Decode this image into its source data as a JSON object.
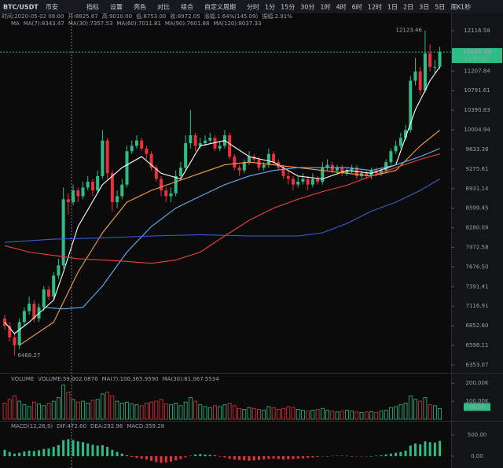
{
  "chart_data": {
    "type": "candlestick",
    "symbol": "BTC/USDT",
    "exchange": "币安",
    "toolbar": [
      "指标",
      "设置",
      "亮色",
      "对比",
      "组合",
      "自定义周期",
      "分时",
      "1分",
      "15分",
      "30分",
      "1时",
      "4时",
      "6时",
      "12时",
      "1日",
      "2日",
      "3日",
      "5日",
      "周K",
      "1秒"
    ],
    "active_period": "1日",
    "info": [
      "时间:2020-05-02 08:00",
      "开:8825.67",
      "高:9010.00",
      "低:8753.00",
      "收:8972.05",
      "涨幅:1.64%(145.09)",
      "振幅:2.91%"
    ],
    "up_color": "#2ebd85",
    "down_color": "#e8313a",
    "price": {
      "legend_title": "MA",
      "log_scale": true,
      "ylim": [
        6276,
        12321
      ],
      "yticks": [
        12116.58,
        11207.84,
        10791.61,
        10390.83,
        10004.94,
        9633.38,
        9275.61,
        8931.14,
        8599.45,
        8280.09,
        7972.58,
        {
          "value": 7676.5,
          "label": "7676.50"
        },
        7391.41,
        7116.91,
        {
          "value": 6852.6,
          "label": "6852.60"
        },
        6598.11,
        6353.07
      ],
      "countdown": "01:57:23",
      "open": [
        6950,
        6850,
        6700,
        6600,
        6900,
        7050,
        7150,
        6950,
        7100,
        7350,
        7250,
        7550,
        7700,
        8750,
        8700,
        8900,
        8800,
        8950,
        9050,
        8900,
        9150,
        9800,
        9200,
        8700,
        8800,
        9000,
        9600,
        9700,
        9800,
        9650,
        9550,
        9300,
        9100,
        8900,
        8800,
        8850,
        9150,
        9300,
        9750,
        9900,
        9700,
        9750,
        9800,
        9850,
        9650,
        9700,
        9900,
        9500,
        9300,
        9250,
        9400,
        9500,
        9450,
        9300,
        9350,
        9550,
        9400,
        9300,
        9150,
        9100,
        9000,
        9050,
        9100,
        9000,
        9100,
        9050,
        9300,
        9350,
        9250,
        9300,
        9200,
        9250,
        9300,
        9150,
        9200,
        9150,
        9250,
        9200,
        9250,
        9400,
        9600,
        9700,
        9850,
        10000,
        11000,
        11200,
        10800,
        11600,
        11300,
        11300
      ],
      "high": [
        7000,
        6900,
        6750,
        6950,
        7100,
        7250,
        7200,
        7150,
        7400,
        7400,
        7600,
        7800,
        8950,
        8850,
        9000,
        8950,
        9050,
        9150,
        9100,
        9250,
        10000,
        9850,
        9250,
        8900,
        9100,
        9700,
        9800,
        9900,
        9850,
        9700,
        9600,
        9350,
        9150,
        8950,
        8950,
        9250,
        9400,
        9900,
        10400,
        9950,
        9850,
        9900,
        9950,
        9900,
        9800,
        10000,
        9950,
        9550,
        9350,
        9450,
        9600,
        9550,
        9500,
        9400,
        9650,
        9600,
        9450,
        9350,
        9250,
        9150,
        9150,
        9200,
        9150,
        9200,
        9150,
        9400,
        9450,
        9400,
        9350,
        9350,
        9300,
        9350,
        9350,
        9250,
        9250,
        9300,
        9300,
        9300,
        9450,
        9650,
        9800,
        9950,
        10100,
        11100,
        11500,
        11300,
        12123.46,
        11800,
        11450,
        11750
      ],
      "low": [
        6800,
        6650,
        6468.27,
        6550,
        6850,
        7000,
        6900,
        6900,
        7050,
        7200,
        7200,
        7500,
        7650,
        8500,
        8650,
        8700,
        8750,
        8900,
        8800,
        8850,
        9100,
        9100,
        8550,
        8600,
        8750,
        8950,
        9550,
        9650,
        9600,
        9450,
        9250,
        9050,
        8800,
        8700,
        8700,
        8800,
        9100,
        9250,
        9650,
        9600,
        9650,
        9700,
        9750,
        9600,
        9600,
        9650,
        9450,
        9250,
        9150,
        9200,
        9350,
        9400,
        9250,
        9250,
        9300,
        9350,
        9250,
        9100,
        9000,
        8900,
        8950,
        9000,
        8900,
        8950,
        9000,
        9000,
        9250,
        9200,
        9200,
        9150,
        9150,
        9200,
        9100,
        9100,
        9100,
        9100,
        9150,
        9150,
        9200,
        9350,
        9550,
        9650,
        9800,
        9950,
        10900,
        10700,
        10750,
        11200,
        11150,
        11250
      ],
      "close": [
        6850,
        6700,
        6600,
        6900,
        7050,
        7150,
        6950,
        7100,
        7350,
        7250,
        7550,
        7700,
        8750,
        8700,
        8900,
        8800,
        8950,
        9050,
        8900,
        9150,
        9800,
        9200,
        8700,
        8800,
        9000,
        9600,
        9700,
        9800,
        9650,
        9550,
        9300,
        9100,
        8900,
        8800,
        8850,
        9150,
        9300,
        9750,
        9900,
        9700,
        9750,
        9800,
        9850,
        9650,
        9700,
        9900,
        9500,
        9300,
        9250,
        9400,
        9500,
        9450,
        9300,
        9350,
        9550,
        9400,
        9300,
        9150,
        9100,
        9000,
        9050,
        9100,
        9000,
        9100,
        9050,
        9300,
        9350,
        9250,
        9300,
        9200,
        9250,
        9300,
        9150,
        9200,
        9150,
        9250,
        9200,
        9250,
        9400,
        9600,
        9700,
        9850,
        10000,
        11000,
        11200,
        10800,
        11600,
        11300,
        11300,
        11628.58
      ],
      "series": [
        {
          "name": "MA(7):8343.47",
          "color": "#ffffff",
          "x": [
            0,
            2,
            5,
            10,
            12,
            15,
            20,
            24,
            28,
            32,
            36,
            40,
            45,
            50,
            55,
            60,
            65,
            70,
            75,
            80,
            84,
            87,
            89
          ],
          "values": [
            6900,
            6750,
            6900,
            7200,
            7600,
            8300,
            9000,
            9300,
            9500,
            9200,
            9100,
            9700,
            9800,
            9500,
            9400,
            9150,
            9100,
            9250,
            9200,
            9350,
            10400,
            11000,
            11300
          ]
        },
        {
          "name": "MA(30):7357.53",
          "color": "#f5a04a",
          "x": [
            3,
            10,
            15,
            20,
            25,
            30,
            35,
            40,
            45,
            50,
            55,
            60,
            65,
            70,
            75,
            80,
            85,
            89
          ],
          "values": [
            6600,
            6900,
            7600,
            8200,
            8700,
            8900,
            9050,
            9200,
            9350,
            9400,
            9350,
            9300,
            9250,
            9200,
            9150,
            9250,
            9700,
            10000
          ]
        },
        {
          "name": "MA(60):7011.81",
          "color": "#5fb0f0",
          "x": [
            8,
            12,
            16,
            20,
            25,
            30,
            35,
            40,
            45,
            50,
            55,
            60,
            65,
            70,
            75,
            80,
            85,
            89
          ],
          "values": [
            7100,
            7080,
            7100,
            7400,
            7900,
            8300,
            8600,
            8800,
            9000,
            9150,
            9250,
            9300,
            9300,
            9300,
            9250,
            9350,
            9500,
            9650
          ]
        },
        {
          "name": "MA(90):7601.88",
          "color": "#e8443a",
          "x": [
            0,
            5,
            10,
            15,
            20,
            25,
            30,
            35,
            40,
            45,
            50,
            55,
            60,
            65,
            70,
            75,
            80,
            85,
            89
          ],
          "values": [
            8000,
            7900,
            7850,
            7800,
            7780,
            7760,
            7730,
            7780,
            7900,
            8150,
            8400,
            8600,
            8750,
            8880,
            8990,
            9150,
            9300,
            9450,
            9550
          ]
        },
        {
          "name": "MA(120):8037.33",
          "color": "#3a5fcf",
          "x": [
            0,
            10,
            20,
            30,
            40,
            50,
            60,
            65,
            70,
            75,
            80,
            85,
            89
          ],
          "values": [
            8050,
            8100,
            8120,
            8150,
            8170,
            8150,
            8150,
            8200,
            8350,
            8550,
            8700,
            8900,
            9100
          ]
        }
      ]
    },
    "volume": {
      "legend": [
        "VOLUME",
        "VOLUME:59,002.0876",
        "MA(7):100,365.9590",
        "MA(30):81,067.5534"
      ],
      "ylim": [
        0,
        240000
      ],
      "yticks": [
        {
          "value": 200000,
          "label": "200.00K"
        },
        {
          "value": 100000,
          "label": "100.00K"
        }
      ],
      "marker": {
        "value": 68200,
        "label": "68.2k"
      },
      "values": [
        90000,
        110000,
        130000,
        100000,
        80000,
        70000,
        95000,
        85000,
        75000,
        90000,
        100000,
        120000,
        190000,
        150000,
        110000,
        95000,
        100000,
        90000,
        105000,
        110000,
        140000,
        150000,
        130000,
        100000,
        90000,
        95000,
        85000,
        80000,
        75000,
        90000,
        95000,
        100000,
        110000,
        85000,
        80000,
        90000,
        75000,
        95000,
        120000,
        100000,
        80000,
        70000,
        65000,
        75000,
        70000,
        80000,
        90000,
        75000,
        60000,
        55000,
        65000,
        60000,
        55000,
        50000,
        70000,
        65000,
        55000,
        60000,
        70000,
        65000,
        55000,
        50000,
        45000,
        50000,
        55000,
        60000,
        50000,
        45000,
        40000,
        45000,
        50000,
        45000,
        40000,
        38000,
        40000,
        42000,
        38000,
        45000,
        50000,
        65000,
        70000,
        80000,
        90000,
        130000,
        110000,
        100000,
        120000,
        80000,
        75000,
        59002.0876
      ]
    },
    "macd": {
      "legend": [
        "MACD(12,26,9)",
        "DIF:472.60",
        "DEA:292.96",
        "MACD:359.28"
      ],
      "ylim": [
        -280,
        780
      ],
      "yticks": [
        {
          "value": 500,
          "label": "500.00"
        },
        {
          "value": 0,
          "label": "0.00"
        }
      ],
      "values": [
        150,
        100,
        60,
        80,
        110,
        130,
        120,
        140,
        170,
        180,
        220,
        260,
        380,
        400,
        380,
        350,
        330,
        300,
        270,
        250,
        260,
        220,
        150,
        100,
        60,
        20,
        -20,
        -40,
        -60,
        -80,
        -110,
        -140,
        -160,
        -150,
        -130,
        -100,
        -70,
        -30,
        10,
        40,
        50,
        40,
        30,
        20,
        -10,
        -30,
        -60,
        -80,
        -90,
        -100,
        -110,
        -100,
        -90,
        -80,
        -70,
        -60,
        -70,
        -80,
        -75,
        -70,
        -60,
        -50,
        -40,
        -30,
        -20,
        -10,
        0,
        5,
        10,
        8,
        5,
        0,
        -5,
        -8,
        -5,
        0,
        10,
        20,
        40,
        60,
        80,
        100,
        130,
        250,
        300,
        280,
        350,
        330,
        320,
        359.28
      ]
    }
  }
}
